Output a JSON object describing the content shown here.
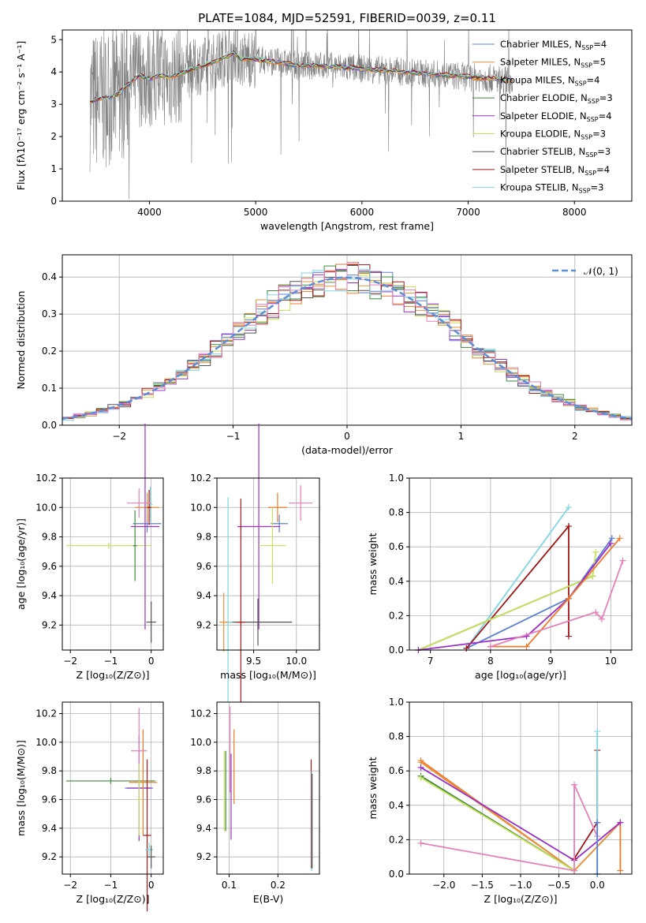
{
  "title": "PLATE=1084, MJD=52591, FIBERID=0039, z=0.11",
  "colors": {
    "Chabrier MILES": "#5b7fd6",
    "Salpeter MILES": "#e8913a",
    "Kroupa MILES": "#f07a2a",
    "Chabrier ELODIE": "#3c8a3c",
    "Salpeter ELODIE": "#9b30c8",
    "Kroupa ELODIE": "#c8e05a",
    "Chabrier STELIB": "#555555",
    "Salpeter STELIB": "#a01818",
    "Kroupa STELIB": "#7fd6e0",
    "extra": "#e87fb8"
  },
  "chart_data": [
    {
      "id": "spectrum",
      "type": "line",
      "xlabel": "wavelength [Angstrom, rest frame]",
      "ylabel": "Flux [fλ10⁻¹⁷ erg cm⁻² s⁻¹ A⁻¹]",
      "xlim": [
        3180,
        8540
      ],
      "ylim": [
        0,
        5.3
      ],
      "xticks": [
        4000,
        5000,
        6000,
        7000,
        8000
      ],
      "yticks": [
        0,
        1,
        2,
        3,
        4,
        5
      ],
      "legend": {
        "placement": "right",
        "entries": [
          {
            "name": "Chabrier MILES, N",
            "sub": "SSP",
            "suffix": "=4"
          },
          {
            "name": "Salpeter MILES, N",
            "sub": "SSP",
            "suffix": "=5"
          },
          {
            "name": "Kroupa MILES, N",
            "sub": "SSP",
            "suffix": "=4"
          },
          {
            "name": "Chabrier ELODIE, N",
            "sub": "SSP",
            "suffix": "=3"
          },
          {
            "name": "Salpeter ELODIE, N",
            "sub": "SSP",
            "suffix": "=4"
          },
          {
            "name": "Kroupa ELODIE, N",
            "sub": "SSP",
            "suffix": "=3"
          },
          {
            "name": "Chabrier STELIB, N",
            "sub": "SSP",
            "suffix": "=3"
          },
          {
            "name": "Salpeter STELIB, N",
            "sub": "SSP",
            "suffix": "=4"
          },
          {
            "name": "Kroupa STELIB, N",
            "sub": "SSP",
            "suffix": "=3"
          }
        ]
      },
      "model_continuum": [
        [
          3440,
          3.1
        ],
        [
          3600,
          3.2
        ],
        [
          3700,
          3.3
        ],
        [
          3800,
          3.6
        ],
        [
          3900,
          3.9
        ],
        [
          4000,
          3.8
        ],
        [
          4100,
          3.9
        ],
        [
          4200,
          3.85
        ],
        [
          4400,
          4.1
        ],
        [
          4600,
          4.3
        ],
        [
          4800,
          4.6
        ],
        [
          4860,
          4.4
        ],
        [
          5000,
          4.4
        ],
        [
          5200,
          4.3
        ],
        [
          5400,
          4.2
        ],
        [
          5600,
          4.2
        ],
        [
          5800,
          4.15
        ],
        [
          6000,
          4.1
        ],
        [
          6200,
          4.05
        ],
        [
          6400,
          4.0
        ],
        [
          6600,
          3.95
        ],
        [
          6800,
          3.9
        ],
        [
          7000,
          3.85
        ],
        [
          7200,
          3.8
        ],
        [
          7400,
          3.75
        ]
      ]
    },
    {
      "id": "residuals",
      "type": "line",
      "xlabel": "(data-model)/error",
      "ylabel": "Normed distribution",
      "xlim": [
        -2.5,
        2.5
      ],
      "ylim": [
        0,
        0.46
      ],
      "xticks": [
        -2,
        -1,
        0,
        1,
        2
      ],
      "yticks": [
        0.0,
        0.1,
        0.2,
        0.3,
        0.4
      ],
      "grid": true,
      "legend": {
        "placement": "top-right",
        "entries": [
          {
            "name": "𝒩(0, 1)"
          }
        ]
      }
    },
    {
      "id": "age-vs-Z",
      "type": "scatter",
      "xlabel": "Z [log₁₀(Z/Z⊙)]",
      "ylabel": "age  [log₁₀(age/yr)]",
      "xlim": [
        -2.2,
        0.3
      ],
      "ylim": [
        9.03,
        10.2
      ],
      "xticks": [
        -2,
        -1,
        0
      ],
      "yticks": [
        9.2,
        9.4,
        9.6,
        9.8,
        10.0,
        10.2
      ],
      "grid": true,
      "points": [
        {
          "s": "Chabrier MILES",
          "x": -0.1,
          "xerr": 0.35,
          "y": 9.89,
          "yerr": 0.06
        },
        {
          "s": "Salpeter MILES",
          "x": -0.1,
          "xerr": 0.3,
          "y": 10.0,
          "yerr": 0.1
        },
        {
          "s": "Kroupa STELIB",
          "x": -0.02,
          "xerr": 0.05,
          "y": 10.02,
          "yerr": 0.12
        },
        {
          "s": "Kroupa ELODIE",
          "x": -1.05,
          "xerr": 1.05,
          "y": 9.74,
          "yerr": 0.02
        },
        {
          "s": "Chabrier ELODIE",
          "x": -0.4,
          "xerr": 0.05,
          "y": 9.74,
          "yerr": 0.24
        },
        {
          "s": "Salpeter ELODIE",
          "x": -0.15,
          "xerr": 0.35,
          "y": 9.87,
          "yerr": 0.7
        },
        {
          "s": "Chabrier STELIB",
          "x": 0.0,
          "xerr": 0.12,
          "y": 9.22,
          "yerr": 0.14
        },
        {
          "s": "Salpeter STELIB",
          "x": -0.05,
          "xerr": 0.05,
          "y": 10.0,
          "yerr": 0.12
        },
        {
          "s": "extra",
          "x": -0.3,
          "xerr": 0.3,
          "y": 10.03,
          "yerr": 0.1
        }
      ]
    },
    {
      "id": "age-vs-mass",
      "type": "scatter",
      "xlabel": "mass [log₁₀(M/M⊙)]",
      "ylabel": "",
      "xlim": [
        9.07,
        10.27
      ],
      "ylim": [
        9.03,
        10.2
      ],
      "xticks": [
        9.5,
        10.0
      ],
      "yticks": [
        9.2,
        9.4,
        9.6,
        9.8,
        10.0,
        10.2
      ],
      "grid": true,
      "points": [
        {
          "s": "Chabrier MILES",
          "x": 9.8,
          "xerr": 0.1,
          "y": 9.89,
          "yerr": 0.06
        },
        {
          "s": "Kroupa MILES",
          "x": 9.78,
          "xerr": 0.11,
          "y": 10.0,
          "yerr": 0.1
        },
        {
          "s": "extra",
          "x": 10.05,
          "xerr": 0.14,
          "y": 10.03,
          "yerr": 0.12
        },
        {
          "s": "Salpeter ELODIE",
          "x": 9.56,
          "xerr": 0.25,
          "y": 9.87,
          "yerr": 0.7
        },
        {
          "s": "Kroupa ELODIE",
          "x": 9.72,
          "xerr": 0.16,
          "y": 9.74,
          "yerr": 0.26
        },
        {
          "s": "Chabrier STELIB",
          "x": 9.55,
          "xerr": 0.4,
          "y": 9.22,
          "yerr": 0.16
        },
        {
          "s": "Salpeter STELIB",
          "x": 9.35,
          "xerr": 0.05,
          "y": 9.22,
          "yerr": 0.84
        },
        {
          "s": "Kroupa STELIB",
          "x": 9.2,
          "xerr": 0.05,
          "y": 9.22,
          "yerr": 0.85
        },
        {
          "s": "Salpeter MILES",
          "x": 9.15,
          "xerr": 0.05,
          "y": 9.22,
          "yerr": 0.2
        }
      ]
    },
    {
      "id": "weight-vs-age",
      "type": "line",
      "xlabel": "age  [log₁₀(age/yr)]",
      "ylabel": "mass weight",
      "xlim": [
        6.65,
        10.35
      ],
      "ylim": [
        0,
        1.0
      ],
      "xticks": [
        7,
        8,
        9,
        10
      ],
      "yticks": [
        0.0,
        0.2,
        0.4,
        0.6,
        0.8,
        1.0
      ],
      "grid": true,
      "series": [
        {
          "s": "Kroupa STELIB",
          "x": [
            7.6,
            9.3
          ],
          "y": [
            0.01,
            0.83
          ]
        },
        {
          "s": "Chabrier MILES",
          "x": [
            7.6,
            9.3,
            10.02
          ],
          "y": [
            0.01,
            0.3,
            0.65
          ]
        },
        {
          "s": "Salpeter STELIB",
          "x": [
            7.6,
            9.3,
            9.3
          ],
          "y": [
            0.01,
            0.72,
            0.08
          ]
        },
        {
          "s": "Chabrier ELODIE",
          "x": [
            6.8,
            9.7
          ],
          "y": [
            0.0,
            0.43
          ]
        },
        {
          "s": "Kroupa ELODIE",
          "x": [
            6.8,
            9.7,
            9.75
          ],
          "y": [
            0.0,
            0.43,
            0.57
          ]
        },
        {
          "s": "Salpeter ELODIE",
          "x": [
            6.8,
            8.6,
            9.3,
            10.0
          ],
          "y": [
            0.0,
            0.08,
            0.3,
            0.62
          ]
        },
        {
          "s": "Kroupa MILES",
          "x": [
            8.0,
            8.6,
            9.3,
            10.15
          ],
          "y": [
            0.02,
            0.02,
            0.3,
            0.65
          ]
        },
        {
          "s": "extra",
          "x": [
            8.0,
            9.75,
            9.85,
            10.2
          ],
          "y": [
            0.02,
            0.22,
            0.18,
            0.52
          ]
        }
      ]
    },
    {
      "id": "mass-vs-Z",
      "type": "scatter",
      "xlabel": "Z [log₁₀(Z/Z⊙)]",
      "ylabel": "mass [log₁₀(M/M⊙)]",
      "xlim": [
        -2.2,
        0.3
      ],
      "ylim": [
        9.08,
        10.28
      ],
      "xticks": [
        -2,
        -1,
        0
      ],
      "yticks": [
        9.2,
        9.4,
        9.6,
        9.8,
        10.0,
        10.2
      ],
      "grid": true,
      "points": [
        {
          "s": "Chabrier MILES",
          "x": -0.3,
          "xerr": 0.35,
          "y": 9.68,
          "yerr": 0.02
        },
        {
          "s": "Chabrier ELODIE",
          "x": -1.0,
          "xerr": 1.1,
          "y": 9.73,
          "yerr": 0.02
        },
        {
          "s": "Salpeter ELODIE",
          "x": -0.3,
          "xerr": 0.3,
          "y": 9.68,
          "yerr": 0.37
        },
        {
          "s": "Kroupa MILES",
          "x": -0.2,
          "xerr": 0.35,
          "y": 9.72,
          "yerr": 0.37
        },
        {
          "s": "extra",
          "x": -0.3,
          "xerr": 0.2,
          "y": 9.94,
          "yerr": 0.3
        },
        {
          "s": "Salpeter STELIB",
          "x": -0.1,
          "xerr": 0.1,
          "y": 9.35,
          "yerr": 0.53
        },
        {
          "s": "Kroupa STELIB",
          "x": -0.05,
          "xerr": 0.1,
          "y": 9.25,
          "yerr": 0.05
        },
        {
          "s": "Chabrier STELIB",
          "x": 0.0,
          "xerr": 0.1,
          "y": 9.2,
          "yerr": 0.08
        },
        {
          "s": "Kroupa ELODIE",
          "x": -0.3,
          "xerr": 0.05,
          "y": 9.6,
          "yerr": 0.25
        }
      ]
    },
    {
      "id": "mass-vs-EBV",
      "type": "scatter",
      "xlabel": "E(B-V)",
      "ylabel": "",
      "xlim": [
        0.075,
        0.285
      ],
      "ylim": [
        9.08,
        10.28
      ],
      "xticks": [
        0.1,
        0.2
      ],
      "yticks": [
        9.2,
        9.4,
        9.6,
        9.8,
        10.0,
        10.2
      ],
      "grid": true,
      "points": [
        {
          "s": "Kroupa ELODIE",
          "x": 0.09,
          "xerr": 0.0,
          "y": 9.66,
          "yerr": 0.28
        },
        {
          "s": "Chabrier ELODIE",
          "x": 0.093,
          "xerr": 0.0,
          "y": 9.66,
          "yerr": 0.28
        },
        {
          "s": "extra",
          "x": 0.102,
          "xerr": 0.0,
          "y": 9.95,
          "yerr": 0.3
        },
        {
          "s": "Salpeter ELODIE",
          "x": 0.104,
          "xerr": 0.0,
          "y": 9.62,
          "yerr": 0.3
        },
        {
          "s": "Kroupa MILES",
          "x": 0.11,
          "xerr": 0.0,
          "y": 9.83,
          "yerr": 0.26
        },
        {
          "s": "Salpeter STELIB",
          "x": 0.268,
          "xerr": 0.0,
          "y": 9.5,
          "yerr": 0.38
        },
        {
          "s": "Kroupa STELIB",
          "x": 0.269,
          "xerr": 0.0,
          "y": 9.45,
          "yerr": 0.35
        },
        {
          "s": "Chabrier STELIB",
          "x": 0.27,
          "xerr": 0.0,
          "y": 9.45,
          "yerr": 0.33
        }
      ]
    },
    {
      "id": "weight-vs-Z",
      "type": "line",
      "xlabel": "Z [log₁₀(Z/Z⊙)]",
      "ylabel": "mass weight",
      "xlim": [
        -2.45,
        0.45
      ],
      "ylim": [
        0,
        1.0
      ],
      "xticks": [
        -2.0,
        -1.5,
        -1.0,
        -0.5,
        0.0
      ],
      "xtick_labels": [
        "−2.0",
        "−1.5",
        "−1.0",
        "−0.5",
        "0.0"
      ],
      "yticks": [
        0.0,
        0.2,
        0.4,
        0.6,
        0.8,
        1.0
      ],
      "grid": true,
      "series": [
        {
          "s": "Kroupa MILES",
          "x": [
            -2.3,
            -0.3,
            0.3,
            0.3
          ],
          "y": [
            0.66,
            0.02,
            0.3,
            0.02
          ]
        },
        {
          "s": "Salpeter MILES",
          "x": [
            -2.3,
            -0.3,
            0.3
          ],
          "y": [
            0.65,
            0.02,
            0.3
          ]
        },
        {
          "s": "Chabrier ELODIE",
          "x": [
            -2.3,
            -0.3
          ],
          "y": [
            0.57,
            0.02
          ]
        },
        {
          "s": "Kroupa ELODIE",
          "x": [
            -2.3,
            -0.3
          ],
          "y": [
            0.56,
            0.02
          ]
        },
        {
          "s": "Salpeter ELODIE",
          "x": [
            -2.3,
            -0.3,
            0.3
          ],
          "y": [
            0.62,
            0.08,
            0.3
          ]
        },
        {
          "s": "Salpeter STELIB",
          "x": [
            -0.3,
            0.0,
            0.0
          ],
          "y": [
            0.09,
            0.3,
            0.72
          ]
        },
        {
          "s": "extra",
          "x": [
            -2.3,
            -0.3,
            -0.3,
            0.0
          ],
          "y": [
            0.18,
            0.02,
            0.52,
            0.22
          ]
        },
        {
          "s": "Kroupa STELIB",
          "x": [
            0.0,
            0.0
          ],
          "y": [
            0.0,
            0.83
          ]
        },
        {
          "s": "Chabrier MILES",
          "x": [
            0.0,
            0.0
          ],
          "y": [
            0.0,
            0.3
          ]
        }
      ]
    }
  ]
}
